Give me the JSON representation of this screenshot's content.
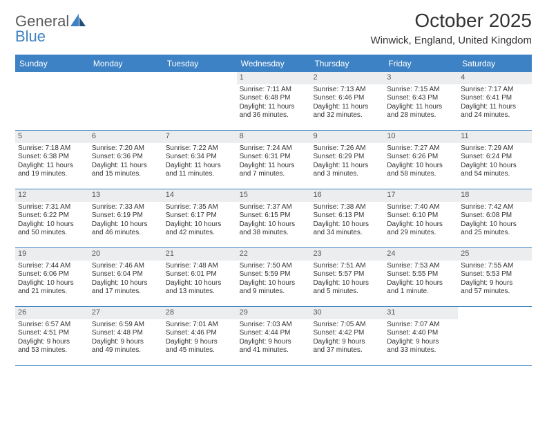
{
  "brand": {
    "word1": "General",
    "word2": "Blue"
  },
  "title": "October 2025",
  "location": "Winwick, England, United Kingdom",
  "colors": {
    "accent": "#3d82c4",
    "daybar": "#ecedee",
    "text": "#333333",
    "bg": "#ffffff"
  },
  "day_headers": [
    "Sunday",
    "Monday",
    "Tuesday",
    "Wednesday",
    "Thursday",
    "Friday",
    "Saturday"
  ],
  "weeks": [
    [
      null,
      null,
      null,
      {
        "n": "1",
        "sr": "Sunrise: 7:11 AM",
        "ss": "Sunset: 6:48 PM",
        "dl1": "Daylight: 11 hours",
        "dl2": "and 36 minutes."
      },
      {
        "n": "2",
        "sr": "Sunrise: 7:13 AM",
        "ss": "Sunset: 6:46 PM",
        "dl1": "Daylight: 11 hours",
        "dl2": "and 32 minutes."
      },
      {
        "n": "3",
        "sr": "Sunrise: 7:15 AM",
        "ss": "Sunset: 6:43 PM",
        "dl1": "Daylight: 11 hours",
        "dl2": "and 28 minutes."
      },
      {
        "n": "4",
        "sr": "Sunrise: 7:17 AM",
        "ss": "Sunset: 6:41 PM",
        "dl1": "Daylight: 11 hours",
        "dl2": "and 24 minutes."
      }
    ],
    [
      {
        "n": "5",
        "sr": "Sunrise: 7:18 AM",
        "ss": "Sunset: 6:38 PM",
        "dl1": "Daylight: 11 hours",
        "dl2": "and 19 minutes."
      },
      {
        "n": "6",
        "sr": "Sunrise: 7:20 AM",
        "ss": "Sunset: 6:36 PM",
        "dl1": "Daylight: 11 hours",
        "dl2": "and 15 minutes."
      },
      {
        "n": "7",
        "sr": "Sunrise: 7:22 AM",
        "ss": "Sunset: 6:34 PM",
        "dl1": "Daylight: 11 hours",
        "dl2": "and 11 minutes."
      },
      {
        "n": "8",
        "sr": "Sunrise: 7:24 AM",
        "ss": "Sunset: 6:31 PM",
        "dl1": "Daylight: 11 hours",
        "dl2": "and 7 minutes."
      },
      {
        "n": "9",
        "sr": "Sunrise: 7:26 AM",
        "ss": "Sunset: 6:29 PM",
        "dl1": "Daylight: 11 hours",
        "dl2": "and 3 minutes."
      },
      {
        "n": "10",
        "sr": "Sunrise: 7:27 AM",
        "ss": "Sunset: 6:26 PM",
        "dl1": "Daylight: 10 hours",
        "dl2": "and 58 minutes."
      },
      {
        "n": "11",
        "sr": "Sunrise: 7:29 AM",
        "ss": "Sunset: 6:24 PM",
        "dl1": "Daylight: 10 hours",
        "dl2": "and 54 minutes."
      }
    ],
    [
      {
        "n": "12",
        "sr": "Sunrise: 7:31 AM",
        "ss": "Sunset: 6:22 PM",
        "dl1": "Daylight: 10 hours",
        "dl2": "and 50 minutes."
      },
      {
        "n": "13",
        "sr": "Sunrise: 7:33 AM",
        "ss": "Sunset: 6:19 PM",
        "dl1": "Daylight: 10 hours",
        "dl2": "and 46 minutes."
      },
      {
        "n": "14",
        "sr": "Sunrise: 7:35 AM",
        "ss": "Sunset: 6:17 PM",
        "dl1": "Daylight: 10 hours",
        "dl2": "and 42 minutes."
      },
      {
        "n": "15",
        "sr": "Sunrise: 7:37 AM",
        "ss": "Sunset: 6:15 PM",
        "dl1": "Daylight: 10 hours",
        "dl2": "and 38 minutes."
      },
      {
        "n": "16",
        "sr": "Sunrise: 7:38 AM",
        "ss": "Sunset: 6:13 PM",
        "dl1": "Daylight: 10 hours",
        "dl2": "and 34 minutes."
      },
      {
        "n": "17",
        "sr": "Sunrise: 7:40 AM",
        "ss": "Sunset: 6:10 PM",
        "dl1": "Daylight: 10 hours",
        "dl2": "and 29 minutes."
      },
      {
        "n": "18",
        "sr": "Sunrise: 7:42 AM",
        "ss": "Sunset: 6:08 PM",
        "dl1": "Daylight: 10 hours",
        "dl2": "and 25 minutes."
      }
    ],
    [
      {
        "n": "19",
        "sr": "Sunrise: 7:44 AM",
        "ss": "Sunset: 6:06 PM",
        "dl1": "Daylight: 10 hours",
        "dl2": "and 21 minutes."
      },
      {
        "n": "20",
        "sr": "Sunrise: 7:46 AM",
        "ss": "Sunset: 6:04 PM",
        "dl1": "Daylight: 10 hours",
        "dl2": "and 17 minutes."
      },
      {
        "n": "21",
        "sr": "Sunrise: 7:48 AM",
        "ss": "Sunset: 6:01 PM",
        "dl1": "Daylight: 10 hours",
        "dl2": "and 13 minutes."
      },
      {
        "n": "22",
        "sr": "Sunrise: 7:50 AM",
        "ss": "Sunset: 5:59 PM",
        "dl1": "Daylight: 10 hours",
        "dl2": "and 9 minutes."
      },
      {
        "n": "23",
        "sr": "Sunrise: 7:51 AM",
        "ss": "Sunset: 5:57 PM",
        "dl1": "Daylight: 10 hours",
        "dl2": "and 5 minutes."
      },
      {
        "n": "24",
        "sr": "Sunrise: 7:53 AM",
        "ss": "Sunset: 5:55 PM",
        "dl1": "Daylight: 10 hours",
        "dl2": "and 1 minute."
      },
      {
        "n": "25",
        "sr": "Sunrise: 7:55 AM",
        "ss": "Sunset: 5:53 PM",
        "dl1": "Daylight: 9 hours",
        "dl2": "and 57 minutes."
      }
    ],
    [
      {
        "n": "26",
        "sr": "Sunrise: 6:57 AM",
        "ss": "Sunset: 4:51 PM",
        "dl1": "Daylight: 9 hours",
        "dl2": "and 53 minutes."
      },
      {
        "n": "27",
        "sr": "Sunrise: 6:59 AM",
        "ss": "Sunset: 4:48 PM",
        "dl1": "Daylight: 9 hours",
        "dl2": "and 49 minutes."
      },
      {
        "n": "28",
        "sr": "Sunrise: 7:01 AM",
        "ss": "Sunset: 4:46 PM",
        "dl1": "Daylight: 9 hours",
        "dl2": "and 45 minutes."
      },
      {
        "n": "29",
        "sr": "Sunrise: 7:03 AM",
        "ss": "Sunset: 4:44 PM",
        "dl1": "Daylight: 9 hours",
        "dl2": "and 41 minutes."
      },
      {
        "n": "30",
        "sr": "Sunrise: 7:05 AM",
        "ss": "Sunset: 4:42 PM",
        "dl1": "Daylight: 9 hours",
        "dl2": "and 37 minutes."
      },
      {
        "n": "31",
        "sr": "Sunrise: 7:07 AM",
        "ss": "Sunset: 4:40 PM",
        "dl1": "Daylight: 9 hours",
        "dl2": "and 33 minutes."
      },
      null
    ]
  ]
}
